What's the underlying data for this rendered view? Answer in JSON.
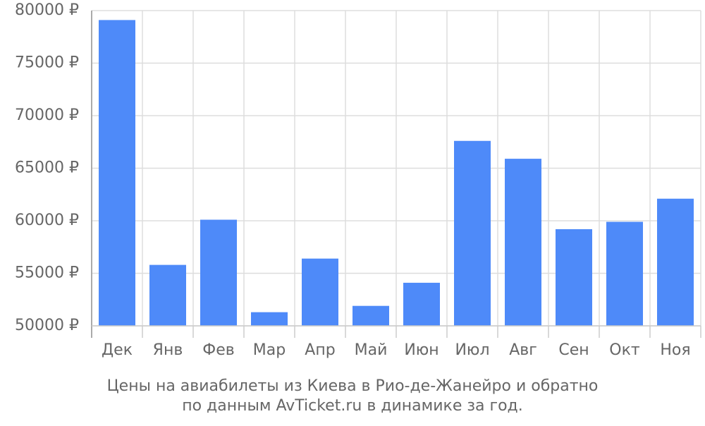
{
  "chart_data": {
    "type": "bar",
    "title": "Цены на авиабилеты из Киева в Рио-де-Жанейро и обратно",
    "subtitle": "по данным AvTicket.ru в динамике за год.",
    "categories": [
      "Дек",
      "Янв",
      "Фев",
      "Мар",
      "Апр",
      "Май",
      "Июн",
      "Июл",
      "Авг",
      "Сен",
      "Окт",
      "Ноя"
    ],
    "values": [
      79100,
      55800,
      60100,
      51300,
      56400,
      51900,
      54100,
      67600,
      65900,
      59200,
      59900,
      62100
    ],
    "color": "#4e8af9",
    "ylim": [
      50000,
      80000
    ],
    "yticks": [
      {
        "value": 50000,
        "label": "50000 ₽"
      },
      {
        "value": 55000,
        "label": "55000 ₽"
      },
      {
        "value": 60000,
        "label": "60000 ₽"
      },
      {
        "value": 65000,
        "label": "65000 ₽"
      },
      {
        "value": 70000,
        "label": "70000 ₽"
      },
      {
        "value": 75000,
        "label": "75000 ₽"
      },
      {
        "value": 80000,
        "label": "80000 ₽"
      }
    ],
    "grid": true
  }
}
